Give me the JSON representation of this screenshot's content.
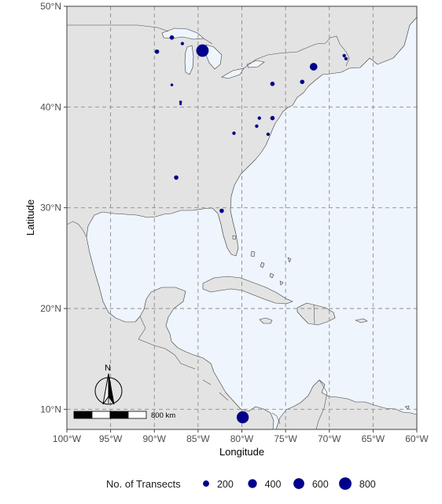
{
  "map": {
    "xlabel": "Longitude",
    "ylabel": "Latitude",
    "lon_range": [
      -100,
      -60
    ],
    "lat_range": [
      8,
      50
    ],
    "x_ticks": [
      {
        "value": -100,
        "label": "100°W"
      },
      {
        "value": -95,
        "label": "95°W"
      },
      {
        "value": -90,
        "label": "90°W"
      },
      {
        "value": -85,
        "label": "85°W"
      },
      {
        "value": -80,
        "label": "80°W"
      },
      {
        "value": -75,
        "label": "75°W"
      },
      {
        "value": -70,
        "label": "70°W"
      },
      {
        "value": -65,
        "label": "65°W"
      },
      {
        "value": -60,
        "label": "60°W"
      }
    ],
    "y_ticks": [
      {
        "value": 10,
        "label": "10°N"
      },
      {
        "value": 20,
        "label": "20°N"
      },
      {
        "value": 30,
        "label": "30°N"
      },
      {
        "value": 40,
        "label": "40°N"
      },
      {
        "value": 50,
        "label": "50°N"
      }
    ],
    "grid": true,
    "colors": {
      "ocean": "#eef5fd",
      "land": "#e3e3e3",
      "border": "#333333",
      "grid": "#8c8c8c",
      "point": "#00008b"
    },
    "scale_bar_label": "800 km",
    "north_arrow_label": "N"
  },
  "legend": {
    "title": "No. of Transects",
    "entries": [
      {
        "label": "200",
        "value": 200
      },
      {
        "label": "400",
        "value": 400
      },
      {
        "label": "600",
        "value": 600
      },
      {
        "label": "800",
        "value": 800
      }
    ],
    "position": "bottom"
  },
  "chart_data": {
    "type": "scatter",
    "xlabel": "Longitude",
    "ylabel": "Latitude",
    "xlim": [
      -100,
      -60
    ],
    "ylim": [
      8,
      50
    ],
    "size_variable": "No. of Transects",
    "points": [
      {
        "lon": -88.0,
        "lat": 46.9,
        "n": 100
      },
      {
        "lon": -89.7,
        "lat": 45.5,
        "n": 100
      },
      {
        "lon": -86.8,
        "lat": 46.3,
        "n": 60
      },
      {
        "lon": -84.5,
        "lat": 45.6,
        "n": 800
      },
      {
        "lon": -88.0,
        "lat": 42.2,
        "n": 40
      },
      {
        "lon": -87.0,
        "lat": 40.5,
        "n": 40
      },
      {
        "lon": -87.0,
        "lat": 40.3,
        "n": 30
      },
      {
        "lon": -76.5,
        "lat": 42.3,
        "n": 100
      },
      {
        "lon": -71.8,
        "lat": 44.0,
        "n": 300
      },
      {
        "lon": -73.1,
        "lat": 42.5,
        "n": 100
      },
      {
        "lon": -68.3,
        "lat": 45.1,
        "n": 60
      },
      {
        "lon": -68.1,
        "lat": 44.8,
        "n": 60
      },
      {
        "lon": -76.5,
        "lat": 38.9,
        "n": 100
      },
      {
        "lon": -78.0,
        "lat": 38.9,
        "n": 60
      },
      {
        "lon": -78.3,
        "lat": 38.1,
        "n": 60
      },
      {
        "lon": -80.9,
        "lat": 37.4,
        "n": 60
      },
      {
        "lon": -77.0,
        "lat": 37.3,
        "n": 60
      },
      {
        "lon": -87.5,
        "lat": 33.0,
        "n": 100
      },
      {
        "lon": -82.3,
        "lat": 29.7,
        "n": 100
      },
      {
        "lon": -79.9,
        "lat": 9.2,
        "n": 750
      }
    ]
  }
}
